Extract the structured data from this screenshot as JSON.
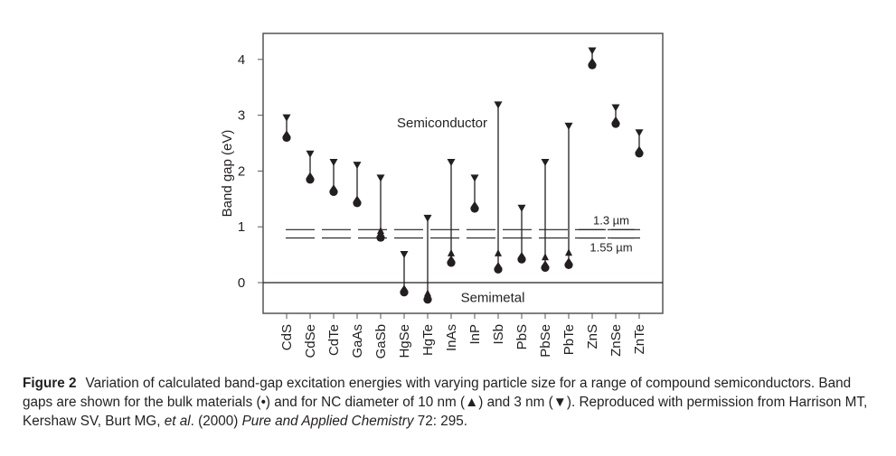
{
  "chart_data": {
    "type": "scatter",
    "title": "",
    "xlabel": "",
    "ylabel": "Band gap (eV)",
    "ylim": [
      -0.55,
      4.5
    ],
    "yticks": [
      0,
      1,
      2,
      3,
      4
    ],
    "categories": [
      "CdS",
      "CdSe",
      "CdTe",
      "GaAs",
      "GaSb",
      "HgSe",
      "HgTe",
      "InAs",
      "InP",
      "ISb",
      "PbS",
      "PbSe",
      "PbTe",
      "ZnS",
      "ZnSe",
      "ZnTe"
    ],
    "series": [
      {
        "name": "bulk",
        "marker": "circle",
        "values": [
          2.6,
          1.85,
          1.63,
          1.43,
          0.81,
          -0.17,
          -0.3,
          0.36,
          1.33,
          0.24,
          0.42,
          0.27,
          0.32,
          3.9,
          2.85,
          2.32
        ]
      },
      {
        "name": "10 nm",
        "marker": "triangle-up",
        "values": [
          null,
          null,
          null,
          null,
          0.92,
          null,
          -0.2,
          0.52,
          null,
          0.52,
          null,
          0.45,
          0.53,
          null,
          null,
          null
        ]
      },
      {
        "name": "3 nm",
        "marker": "triangle-down",
        "values": [
          3.0,
          2.35,
          2.2,
          2.15,
          1.92,
          0.55,
          1.2,
          2.2,
          1.92,
          3.23,
          1.38,
          2.2,
          2.85,
          4.2,
          3.18,
          2.73
        ]
      }
    ],
    "reference_lines": [
      {
        "label": "1.3 µm",
        "value": 0.95
      },
      {
        "label": "1.55 µm",
        "value": 0.8
      }
    ],
    "zero_line": 0,
    "annotations": [
      {
        "text": "Semiconductor",
        "x_category": "InAs",
        "y": 2.85
      },
      {
        "text": "Semimetal",
        "y": -0.27
      }
    ],
    "grid": false,
    "legend": "none (described in caption)"
  },
  "caption": {
    "label": "Figure 2",
    "part1": "Variation of calculated band-gap excitation energies with varying particle size for a range of compound semiconductors. Band gaps are shown for the bulk materials (•) and for NC diameter of 10 nm (▲) and 3 nm (▼). Reproduced with permission from Harrison MT, Kershaw SV, Burt MG, ",
    "etal": "et al",
    "part2": ". (2000) ",
    "journal": "Pure and Applied Chemistry",
    "part3": " 72: 295."
  }
}
